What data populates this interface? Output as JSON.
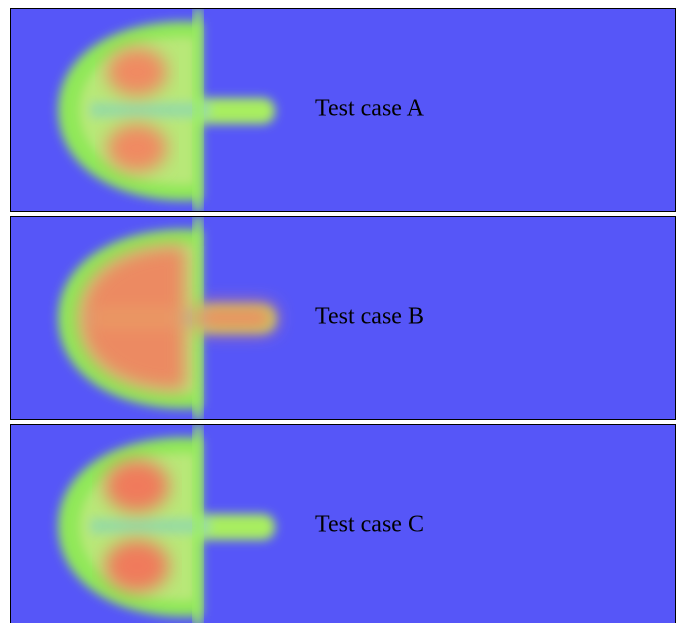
{
  "panels": [
    {
      "label": "Test case A"
    },
    {
      "label": "Test case B"
    },
    {
      "label": "Test case C"
    }
  ]
}
